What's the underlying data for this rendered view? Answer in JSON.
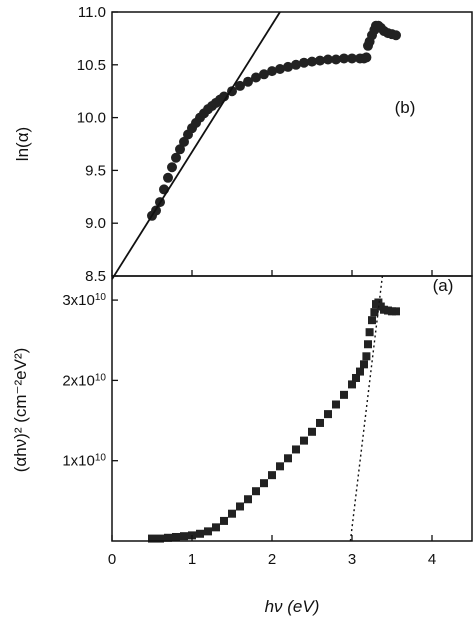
{
  "chart_data": [
    {
      "panel": "b",
      "type": "scatter",
      "label": "(b)",
      "ylabel": "ln(α)",
      "xlim": [
        0,
        4.5
      ],
      "ylim": [
        8.5,
        11.0
      ],
      "y_ticks": [
        "8.5",
        "9.0",
        "9.5",
        "10.0",
        "10.5",
        "11.0"
      ],
      "x": [
        0.5,
        0.55,
        0.6,
        0.65,
        0.7,
        0.75,
        0.8,
        0.85,
        0.9,
        0.95,
        1.0,
        1.05,
        1.1,
        1.15,
        1.2,
        1.25,
        1.3,
        1.35,
        1.4,
        1.5,
        1.6,
        1.7,
        1.8,
        1.9,
        2.0,
        2.1,
        2.2,
        2.3,
        2.4,
        2.5,
        2.6,
        2.7,
        2.8,
        2.9,
        3.0,
        3.1,
        3.15,
        3.18,
        3.2,
        3.22,
        3.25,
        3.28,
        3.3,
        3.33,
        3.36,
        3.4,
        3.45,
        3.5,
        3.55
      ],
      "y": [
        9.07,
        9.12,
        9.2,
        9.32,
        9.43,
        9.53,
        9.62,
        9.7,
        9.77,
        9.84,
        9.9,
        9.95,
        10.0,
        10.04,
        10.08,
        10.11,
        10.14,
        10.17,
        10.2,
        10.25,
        10.3,
        10.34,
        10.38,
        10.41,
        10.44,
        10.46,
        10.48,
        10.5,
        10.52,
        10.53,
        10.54,
        10.55,
        10.55,
        10.56,
        10.56,
        10.56,
        10.56,
        10.57,
        10.68,
        10.72,
        10.78,
        10.83,
        10.87,
        10.87,
        10.85,
        10.82,
        10.8,
        10.79,
        10.78
      ],
      "fit_line": {
        "x": [
          0,
          2.1
        ],
        "y": [
          8.47,
          11.0
        ]
      }
    },
    {
      "panel": "a",
      "type": "scatter",
      "label": "(a)",
      "ylabel": "(αhν)² (cm⁻²eV²)",
      "xlabel": "hν (eV)",
      "xlim": [
        0,
        4.5
      ],
      "ylim": [
        0,
        33000000000.0
      ],
      "x_ticks": [
        "0",
        "1",
        "2",
        "3",
        "4"
      ],
      "y_ticks": [
        {
          "value": 10000000000.0,
          "mantissa": "1x10",
          "exp": "10"
        },
        {
          "value": 20000000000.0,
          "mantissa": "2x10",
          "exp": "10"
        },
        {
          "value": 30000000000.0,
          "mantissa": "3x10",
          "exp": "10"
        }
      ],
      "x": [
        0.5,
        0.6,
        0.7,
        0.8,
        0.9,
        1.0,
        1.1,
        1.2,
        1.3,
        1.4,
        1.5,
        1.6,
        1.7,
        1.8,
        1.9,
        2.0,
        2.1,
        2.2,
        2.3,
        2.4,
        2.5,
        2.6,
        2.7,
        2.8,
        2.9,
        3.0,
        3.05,
        3.1,
        3.15,
        3.18,
        3.2,
        3.22,
        3.25,
        3.28,
        3.3,
        3.33,
        3.36,
        3.4,
        3.45,
        3.5,
        3.55
      ],
      "y": [
        300000000.0,
        300000000.0,
        400000000.0,
        500000000.0,
        600000000.0,
        700000000.0,
        900000000.0,
        1200000000.0,
        1700000000.0,
        2500000000.0,
        3400000000.0,
        4300000000.0,
        5200000000.0,
        6200000000.0,
        7200000000.0,
        8200000000.0,
        9300000000.0,
        10300000000.0,
        11400000000.0,
        12500000000.0,
        13600000000.0,
        14700000000.0,
        15800000000.0,
        17000000000.0,
        18200000000.0,
        19500000000.0,
        20300000000.0,
        21100000000.0,
        22000000000.0,
        23000000000.0,
        24500000000.0,
        26000000000.0,
        27500000000.0,
        28500000000.0,
        29500000000.0,
        29700000000.0,
        29200000000.0,
        28800000000.0,
        28700000000.0,
        28600000000.0,
        28600000000.0
      ],
      "fit_line": {
        "x": [
          2.98,
          3.38
        ],
        "y": [
          0,
          33000000000.0
        ]
      }
    }
  ]
}
